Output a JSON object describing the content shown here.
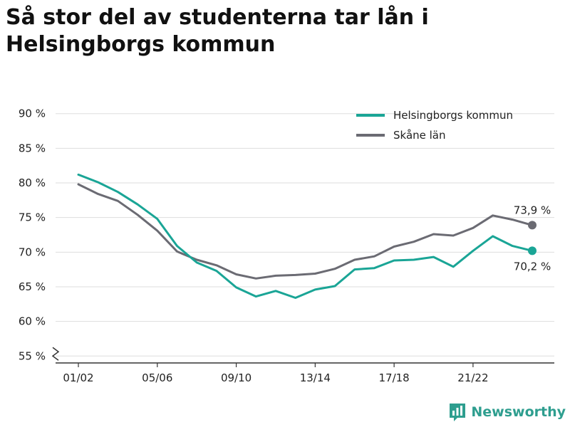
{
  "title": "Så stor del av studenterna tar lån i Helsingborgs kommun",
  "brand": {
    "name": "Newsworthy",
    "icon": "bar-chart-icon",
    "color": "#2e9e8f"
  },
  "chart_data": {
    "type": "line",
    "title": "Så stor del av studenterna tar lån i Helsingborgs kommun",
    "x_ticks": [
      "01/02",
      "05/06",
      "09/10",
      "13/14",
      "17/18",
      "21/22"
    ],
    "x": [
      "01/02",
      "02/03",
      "03/04",
      "04/05",
      "05/06",
      "06/07",
      "07/08",
      "08/09",
      "09/10",
      "10/11",
      "11/12",
      "12/13",
      "13/14",
      "14/15",
      "15/16",
      "16/17",
      "17/18",
      "18/19",
      "19/20",
      "20/21",
      "21/22",
      "22/23",
      "23/24",
      "24/25"
    ],
    "y_ticks": [
      55,
      60,
      65,
      70,
      75,
      80,
      85,
      90
    ],
    "y_tick_labels": [
      "55 %",
      "60 %",
      "65 %",
      "70 %",
      "75 %",
      "80 %",
      "85 %",
      "90 %"
    ],
    "ylim": [
      54,
      91
    ],
    "y_axis_break": true,
    "grid": true,
    "legend_position": "top-right",
    "series": [
      {
        "name": "Helsingborgs kommun",
        "color": "#1aa596",
        "values": [
          81.2,
          80.1,
          78.7,
          76.9,
          74.8,
          70.9,
          68.5,
          67.3,
          64.9,
          63.6,
          64.4,
          63.4,
          64.6,
          65.1,
          67.5,
          67.7,
          68.8,
          68.9,
          69.3,
          67.9,
          70.2,
          72.3,
          70.9,
          70.2
        ],
        "end_label": "70,2 %"
      },
      {
        "name": "Skåne län",
        "color": "#6b6b73",
        "values": [
          79.8,
          78.4,
          77.4,
          75.4,
          73.1,
          70.1,
          68.9,
          68.1,
          66.8,
          66.2,
          66.6,
          66.7,
          66.9,
          67.6,
          68.9,
          69.4,
          70.8,
          71.5,
          72.6,
          72.4,
          73.5,
          75.3,
          74.7,
          73.9
        ],
        "end_label": "73,9 %"
      }
    ]
  }
}
